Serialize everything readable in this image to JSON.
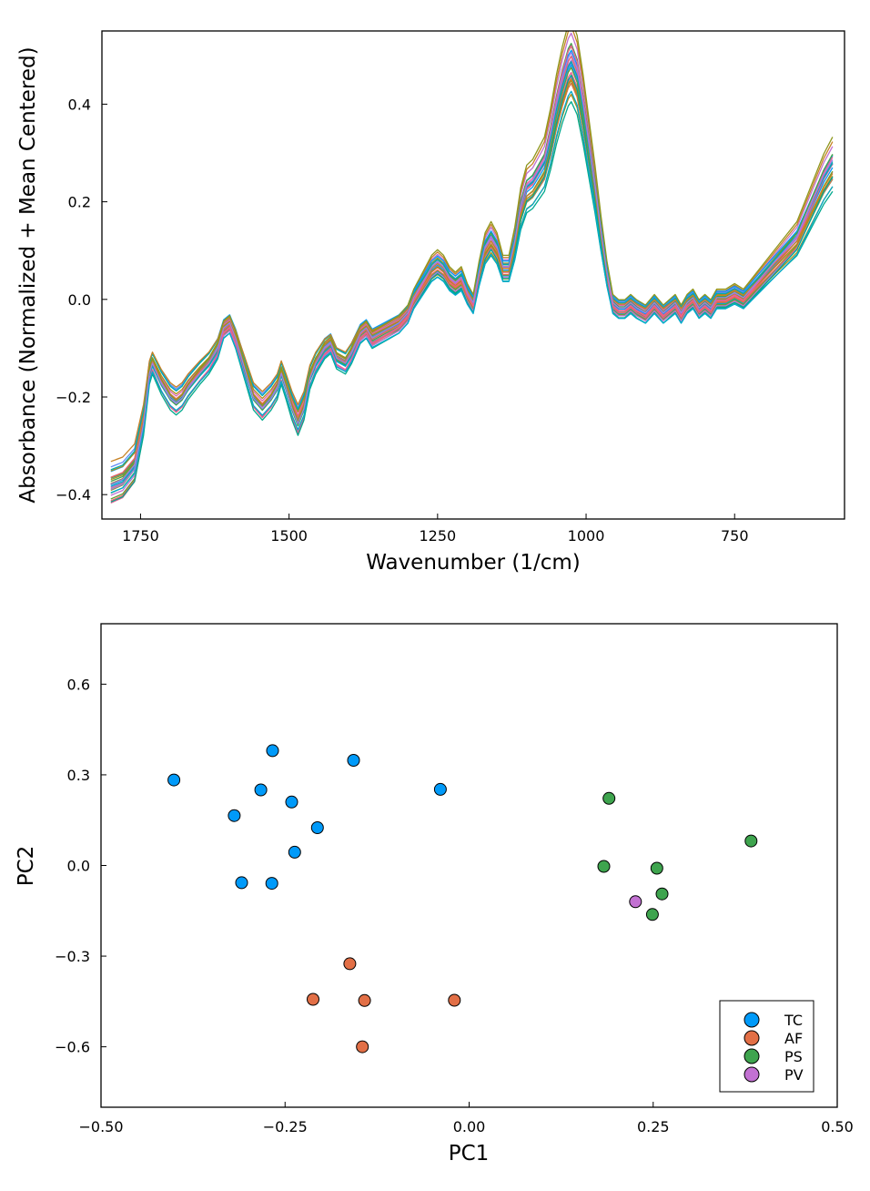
{
  "colors": {
    "TC": "#009af9",
    "AF": "#e26f46",
    "PS": "#3ea44e",
    "PV": "#c271d2",
    "spectra_palette": [
      "#009af9",
      "#e26f46",
      "#3ea44e",
      "#c271d2",
      "#ac8e18",
      "#00aaae",
      "#ed5e93",
      "#c68225",
      "#00a98d",
      "#8e971d",
      "#00a9cd",
      "#9b7fe9",
      "#618df6",
      "#f05f73",
      "#dd64b5",
      "#6b9e32"
    ]
  },
  "chart_data": [
    {
      "type": "line",
      "title": "",
      "xlabel": "Wavenumber (1/cm)",
      "ylabel": "Absorbance (Normalized + Mean Centered)",
      "xlim": [
        1815,
        565
      ],
      "ylim": [
        -0.45,
        0.55
      ],
      "x_reversed": true,
      "xticks": [
        1750,
        1500,
        1250,
        1000,
        750
      ],
      "xtick_labels": [
        "1750",
        "1500",
        "1250",
        "1000",
        "750"
      ],
      "yticks": [
        -0.4,
        -0.2,
        0.0,
        0.2,
        0.4
      ],
      "ytick_labels": [
        "−0.4",
        "−0.2",
        "0.0",
        "0.2",
        "0.4"
      ],
      "grid": false,
      "legend": "none",
      "x": [
        1800,
        1780,
        1760,
        1745,
        1740,
        1735,
        1730,
        1715,
        1700,
        1690,
        1680,
        1670,
        1650,
        1635,
        1620,
        1610,
        1600,
        1590,
        1575,
        1560,
        1545,
        1530,
        1520,
        1513,
        1505,
        1495,
        1485,
        1475,
        1465,
        1455,
        1440,
        1430,
        1420,
        1405,
        1395,
        1380,
        1370,
        1360,
        1345,
        1330,
        1315,
        1300,
        1290,
        1275,
        1260,
        1250,
        1240,
        1230,
        1220,
        1210,
        1200,
        1190,
        1180,
        1170,
        1160,
        1150,
        1140,
        1130,
        1120,
        1110,
        1100,
        1090,
        1080,
        1070,
        1060,
        1050,
        1040,
        1030,
        1025,
        1015,
        1005,
        995,
        985,
        975,
        965,
        955,
        945,
        935,
        925,
        915,
        900,
        885,
        870,
        860,
        850,
        840,
        830,
        820,
        810,
        800,
        790,
        780,
        765,
        750,
        735,
        720,
        705,
        690,
        675,
        660,
        645,
        630,
        615,
        600,
        585
      ],
      "y_template": [
        -0.38,
        -0.37,
        -0.34,
        -0.25,
        -0.2,
        -0.15,
        -0.13,
        -0.17,
        -0.2,
        -0.21,
        -0.2,
        -0.18,
        -0.15,
        -0.13,
        -0.1,
        -0.06,
        -0.05,
        -0.08,
        -0.14,
        -0.2,
        -0.22,
        -0.2,
        -0.18,
        -0.15,
        -0.18,
        -0.22,
        -0.25,
        -0.22,
        -0.16,
        -0.13,
        -0.1,
        -0.09,
        -0.12,
        -0.13,
        -0.11,
        -0.07,
        -0.06,
        -0.08,
        -0.07,
        -0.06,
        -0.05,
        -0.03,
        0.0,
        0.03,
        0.06,
        0.07,
        0.06,
        0.04,
        0.03,
        0.04,
        0.01,
        -0.01,
        0.05,
        0.1,
        0.12,
        0.1,
        0.06,
        0.06,
        0.11,
        0.18,
        0.22,
        0.23,
        0.25,
        0.27,
        0.32,
        0.38,
        0.43,
        0.47,
        0.48,
        0.45,
        0.38,
        0.3,
        0.22,
        0.13,
        0.05,
        -0.01,
        -0.02,
        -0.02,
        -0.01,
        -0.02,
        -0.03,
        -0.01,
        -0.03,
        -0.02,
        -0.01,
        -0.03,
        -0.01,
        0.0,
        -0.02,
        -0.01,
        -0.02,
        0.0,
        0.0,
        0.01,
        0.0,
        0.02,
        0.04,
        0.06,
        0.08,
        0.1,
        0.12,
        0.16,
        0.2,
        0.24,
        0.27
      ],
      "series": [
        {
          "offset": 0.0,
          "amp": 1.0
        },
        {
          "offset": 0.015,
          "amp": 1.05
        },
        {
          "offset": -0.012,
          "amp": 0.95
        },
        {
          "offset": 0.025,
          "amp": 1.08
        },
        {
          "offset": -0.02,
          "amp": 0.92
        },
        {
          "offset": 0.008,
          "amp": 1.02
        },
        {
          "offset": -0.005,
          "amp": 0.98
        },
        {
          "offset": 0.03,
          "amp": 1.1
        },
        {
          "offset": -0.025,
          "amp": 0.9
        },
        {
          "offset": 0.018,
          "amp": 1.04
        },
        {
          "offset": -0.015,
          "amp": 0.97
        },
        {
          "offset": 0.005,
          "amp": 1.01
        },
        {
          "offset": 0.022,
          "amp": 0.96
        },
        {
          "offset": -0.01,
          "amp": 1.06
        },
        {
          "offset": 0.012,
          "amp": 0.99
        },
        {
          "offset": -0.018,
          "amp": 1.03
        },
        {
          "offset": 0.028,
          "amp": 1.0
        },
        {
          "offset": -0.008,
          "amp": 0.94
        },
        {
          "offset": 0.01,
          "amp": 1.07
        },
        {
          "offset": -0.022,
          "amp": 1.0
        },
        {
          "offset": 0.002,
          "amp": 0.93
        },
        {
          "offset": 0.02,
          "amp": 0.97
        },
        {
          "offset": -0.003,
          "amp": 1.09
        },
        {
          "offset": 0.014,
          "amp": 0.91
        },
        {
          "offset": -0.028,
          "amp": 1.02
        },
        {
          "offset": 0.035,
          "amp": 1.12
        },
        {
          "offset": -0.032,
          "amp": 0.96
        },
        {
          "offset": 0.006,
          "amp": 1.04
        }
      ]
    },
    {
      "type": "scatter",
      "title": "",
      "xlabel": "PC1",
      "ylabel": "PC2",
      "xlim": [
        -0.5,
        0.5
      ],
      "ylim": [
        -0.8,
        0.8
      ],
      "xticks": [
        -0.5,
        -0.25,
        0.0,
        0.25,
        0.5
      ],
      "xtick_labels": [
        "−0.50",
        "−0.25",
        "0.00",
        "0.25",
        "0.50"
      ],
      "yticks": [
        -0.6,
        -0.3,
        0.0,
        0.3,
        0.6
      ],
      "ytick_labels": [
        "−0.6",
        "−0.3",
        "0.0",
        "0.3",
        "0.6"
      ],
      "grid": false,
      "legend": "bottom-right",
      "series": [
        {
          "name": "TC",
          "points": [
            [
              -0.401,
              0.283
            ],
            [
              -0.267,
              0.38
            ],
            [
              -0.157,
              0.348
            ],
            [
              -0.283,
              0.25
            ],
            [
              -0.319,
              0.165
            ],
            [
              -0.241,
              0.21
            ],
            [
              -0.206,
              0.125
            ],
            [
              -0.237,
              0.044
            ],
            [
              -0.309,
              -0.057
            ],
            [
              -0.268,
              -0.059
            ],
            [
              -0.039,
              0.252
            ]
          ]
        },
        {
          "name": "AF",
          "points": [
            [
              -0.162,
              -0.325
            ],
            [
              -0.212,
              -0.443
            ],
            [
              -0.142,
              -0.447
            ],
            [
              -0.02,
              -0.446
            ],
            [
              -0.145,
              -0.6
            ]
          ]
        },
        {
          "name": "PS",
          "points": [
            [
              0.19,
              0.222
            ],
            [
              0.183,
              -0.003
            ],
            [
              0.255,
              -0.009
            ],
            [
              0.262,
              -0.094
            ],
            [
              0.249,
              -0.162
            ],
            [
              0.383,
              0.081
            ]
          ]
        },
        {
          "name": "PV",
          "points": [
            [
              0.226,
              -0.12
            ]
          ]
        }
      ]
    }
  ]
}
